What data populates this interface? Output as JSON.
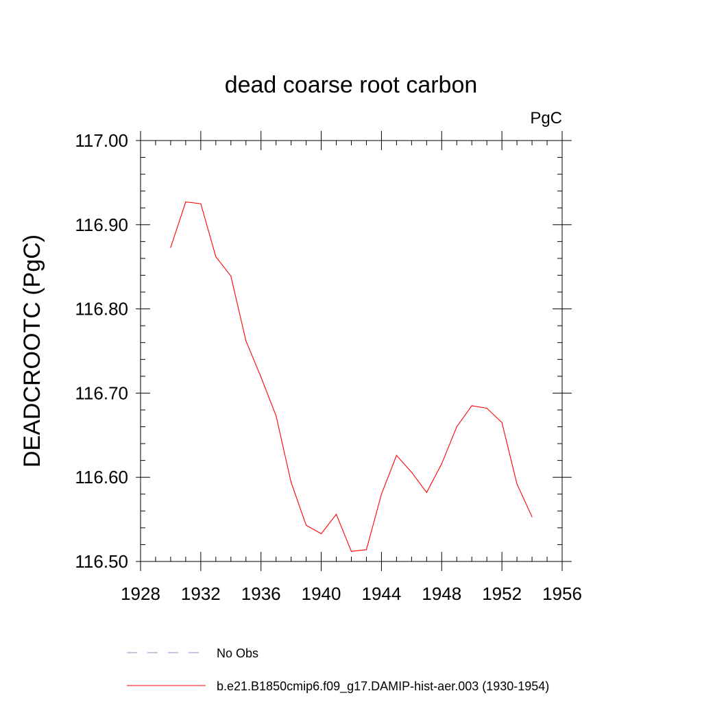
{
  "chart_data": {
    "type": "line",
    "title": "dead coarse root carbon",
    "units_label": "PgC",
    "ylabel": "DEADCROOTC  (PgC)",
    "xlabel": "",
    "xlim": [
      1928,
      1956
    ],
    "ylim": [
      116.5,
      117.0
    ],
    "x_ticks": [
      "1928",
      "1932",
      "1936",
      "1940",
      "1944",
      "1948",
      "1952",
      "1956"
    ],
    "y_ticks": [
      "116.50",
      "116.60",
      "116.70",
      "116.80",
      "116.90",
      "117.00"
    ],
    "grid": false,
    "legend_position": "bottom",
    "series": [
      {
        "name": "No Obs",
        "color": "#8a8ad6",
        "style": "dashed",
        "x": [],
        "y": []
      },
      {
        "name": "b.e21.B1850cmip6.f09_g17.DAMIP-hist-aer.003 (1930-1954)",
        "color": "#ff0000",
        "style": "solid",
        "x": [
          1930,
          1931,
          1932,
          1933,
          1934,
          1935,
          1936,
          1937,
          1938,
          1939,
          1940,
          1941,
          1942,
          1943,
          1944,
          1945,
          1946,
          1947,
          1948,
          1949,
          1950,
          1951,
          1952,
          1953,
          1954
        ],
        "y": [
          116.873,
          116.927,
          116.925,
          116.862,
          116.839,
          116.762,
          116.719,
          116.673,
          116.594,
          116.543,
          116.533,
          116.556,
          116.512,
          116.514,
          116.58,
          116.626,
          116.606,
          116.582,
          116.616,
          116.66,
          116.685,
          116.682,
          116.665,
          116.592,
          116.553
        ]
      }
    ]
  }
}
